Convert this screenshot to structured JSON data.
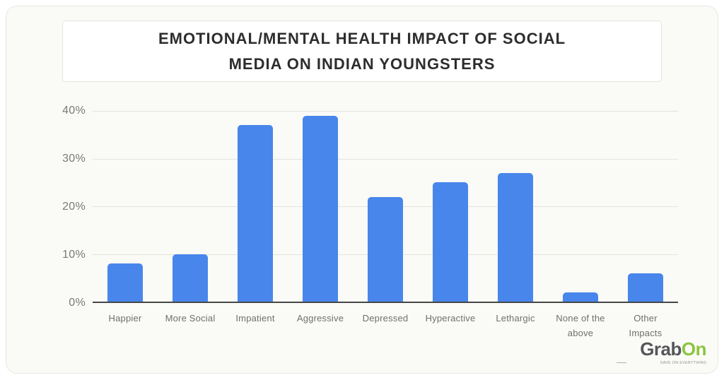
{
  "title": {
    "line1": "EMOTIONAL/MENTAL HEALTH IMPACT OF SOCIAL",
    "line2": "MEDIA ON INDIAN YOUNGSTERS"
  },
  "chart_data": {
    "type": "bar",
    "title": "EMOTIONAL/MENTAL HEALTH IMPACT OF SOCIAL MEDIA ON INDIAN YOUNGSTERS",
    "categories": [
      "Happier",
      "More Social",
      "Impatient",
      "Aggressive",
      "Depressed",
      "Hyperactive",
      "Lethargic",
      "None of the above",
      "Other Impacts"
    ],
    "values": [
      8,
      10,
      37,
      39,
      22,
      25,
      27,
      2,
      6
    ],
    "unit": "%",
    "xlabel": "",
    "ylabel": "",
    "ylim": [
      0,
      40
    ],
    "ytick_labels": [
      "40%",
      "30%",
      "20%",
      "10%",
      "0%"
    ],
    "grid": true,
    "legend": "none",
    "bar_color": "#4886ec"
  },
  "branding": {
    "logo_part_gray": "Grab",
    "logo_part_green": "On",
    "tagline": "SAVE ON EVERYTHING"
  }
}
